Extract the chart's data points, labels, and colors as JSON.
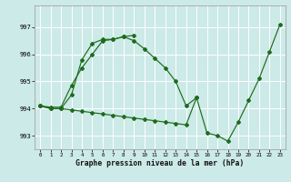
{
  "xlabel": "Graphe pression niveau de la mer (hPa)",
  "background_color": "#cceae7",
  "grid_color": "#ffffff",
  "line_color": "#1e6b1e",
  "ylim": [
    992.5,
    997.8
  ],
  "yticks": [
    993,
    994,
    995,
    996,
    997
  ],
  "xlim": [
    -0.5,
    23.5
  ],
  "xticks": [
    0,
    1,
    2,
    3,
    4,
    5,
    6,
    7,
    8,
    9,
    10,
    11,
    12,
    13,
    14,
    15,
    16,
    17,
    18,
    19,
    20,
    21,
    22,
    23
  ],
  "series": [
    {
      "x": [
        0,
        1,
        2,
        3,
        4,
        5,
        6,
        7,
        8,
        9,
        10,
        11,
        12,
        13,
        14,
        15
      ],
      "y": [
        994.1,
        994.0,
        994.0,
        994.5,
        995.8,
        996.4,
        996.55,
        996.55,
        996.65,
        996.5,
        996.2,
        995.85,
        995.5,
        995.0,
        994.1,
        994.4
      ]
    },
    {
      "x": [
        0,
        1,
        2,
        3,
        4,
        5,
        6,
        7,
        8,
        9
      ],
      "y": [
        994.1,
        994.05,
        994.05,
        994.85,
        995.5,
        996.0,
        996.5,
        996.55,
        996.65,
        996.7
      ]
    },
    {
      "x": [
        0,
        1,
        2,
        3,
        4,
        5,
        6,
        7,
        8,
        9,
        10,
        11,
        12,
        13,
        14,
        15,
        16,
        17,
        18,
        19,
        20,
        21,
        22,
        23
      ],
      "y": [
        994.1,
        994.0,
        994.0,
        993.95,
        993.9,
        993.85,
        993.8,
        993.75,
        993.7,
        993.65,
        993.6,
        993.55,
        993.5,
        993.45,
        993.4,
        994.4,
        993.1,
        993.0,
        992.8,
        993.5,
        994.3,
        995.1,
        996.1,
        997.1
      ]
    }
  ]
}
